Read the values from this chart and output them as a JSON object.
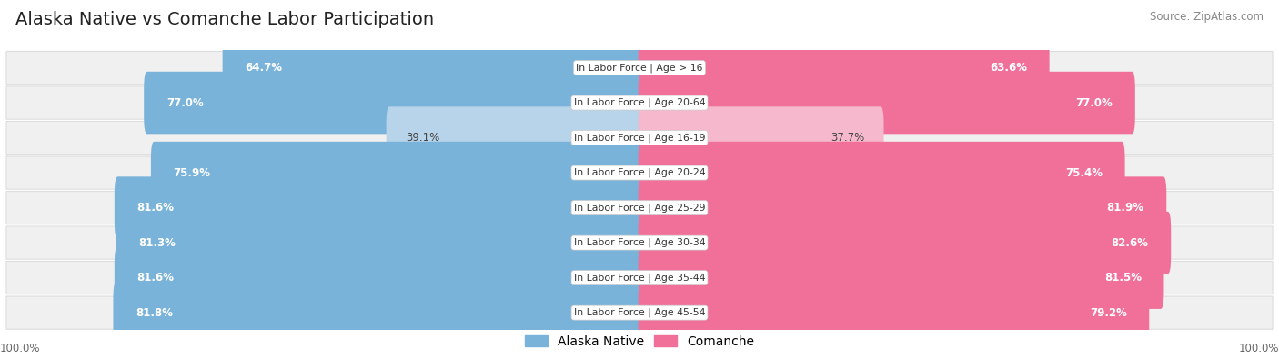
{
  "title": "Alaska Native vs Comanche Labor Participation",
  "source": "Source: ZipAtlas.com",
  "categories": [
    "In Labor Force | Age > 16",
    "In Labor Force | Age 20-64",
    "In Labor Force | Age 16-19",
    "In Labor Force | Age 20-24",
    "In Labor Force | Age 25-29",
    "In Labor Force | Age 30-34",
    "In Labor Force | Age 35-44",
    "In Labor Force | Age 45-54"
  ],
  "alaska_values": [
    64.7,
    77.0,
    39.1,
    75.9,
    81.6,
    81.3,
    81.6,
    81.8
  ],
  "comanche_values": [
    63.6,
    77.0,
    37.7,
    75.4,
    81.9,
    82.6,
    81.5,
    79.2
  ],
  "alaska_color": "#7ab3d9",
  "alaska_color_light": "#b8d4ea",
  "comanche_color": "#f07099",
  "comanche_color_light": "#f5b8cc",
  "row_bg": "#f0f0f0",
  "row_border": "#dddddd",
  "fig_bg": "#ffffff",
  "max_value": 100.0,
  "label_fontsize": 8.5,
  "title_fontsize": 14,
  "legend_fontsize": 10
}
